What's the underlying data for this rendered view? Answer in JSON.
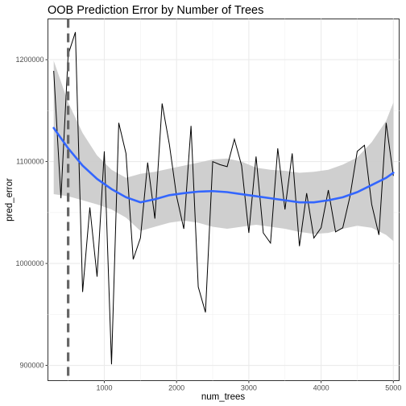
{
  "chart_data": {
    "type": "line",
    "title": "OOB Prediction Error by Number of Trees",
    "xlabel": "num_trees",
    "ylabel": "pred_error",
    "xlim": [
      220,
      5080
    ],
    "ylim": [
      885000,
      1240000
    ],
    "x_ticks": [
      1000,
      2000,
      3000,
      4000,
      5000
    ],
    "y_ticks": [
      900000,
      1000000,
      1100000,
      1200000
    ],
    "x_tick_labels": [
      "1000",
      "2000",
      "3000",
      "4000",
      "5000"
    ],
    "y_tick_labels": [
      "900000",
      "1000000",
      "1100000",
      "1200000"
    ],
    "grid": true,
    "legend": "none",
    "vline": {
      "x": 500,
      "style": "dashed",
      "color": "#666666"
    },
    "series": [
      {
        "kind": "line",
        "color": "#000000",
        "x": [
          300,
          400,
          500,
          600,
          700,
          800,
          900,
          1000,
          1100,
          1200,
          1300,
          1400,
          1500,
          1600,
          1700,
          1800,
          1900,
          2000,
          2100,
          2200,
          2300,
          2400,
          2500,
          2600,
          2700,
          2800,
          2900,
          3000,
          3100,
          3200,
          3300,
          3400,
          3500,
          3600,
          3700,
          3800,
          3900,
          4000,
          4100,
          4200,
          4300,
          4400,
          4500,
          4600,
          4700,
          4800,
          4900,
          5000
        ],
        "values": [
          1189000,
          1064000,
          1205000,
          1227000,
          972000,
          1055000,
          987000,
          1110000,
          901000,
          1138000,
          1108000,
          1004000,
          1025000,
          1099000,
          1044000,
          1157000,
          1117000,
          1066000,
          1034000,
          1135000,
          977000,
          952000,
          1100000,
          1097000,
          1095000,
          1122000,
          1096000,
          1030000,
          1105000,
          1030000,
          1020000,
          1113000,
          1053000,
          1108000,
          1017000,
          1069000,
          1025000,
          1035000,
          1072000,
          1031000,
          1035000,
          1066000,
          1110000,
          1116000,
          1058000,
          1028000,
          1138000,
          1086000
        ]
      },
      {
        "kind": "smooth",
        "color": "#3366ff",
        "x": [
          300,
          500,
          700,
          900,
          1100,
          1300,
          1500,
          1700,
          1900,
          2100,
          2300,
          2500,
          2700,
          2900,
          3100,
          3300,
          3500,
          3700,
          3900,
          4100,
          4300,
          4500,
          4700,
          4900,
          5000
        ],
        "values": [
          1133000,
          1113000,
          1096000,
          1083000,
          1073000,
          1065000,
          1060000,
          1063000,
          1067000,
          1069000,
          1070500,
          1071000,
          1070000,
          1068000,
          1066000,
          1064000,
          1062000,
          1060000,
          1060000,
          1062000,
          1065000,
          1070000,
          1077000,
          1084000,
          1089000
        ],
        "ci_lower": [
          1068000,
          1066000,
          1062000,
          1058000,
          1053000,
          1045000,
          1032000,
          1036000,
          1040000,
          1042000,
          1040000,
          1036000,
          1034000,
          1036000,
          1038000,
          1036000,
          1034000,
          1031000,
          1029000,
          1030000,
          1034000,
          1037000,
          1035000,
          1028000,
          1022000
        ],
        "ci_upper": [
          1199000,
          1158000,
          1128000,
          1106000,
          1092000,
          1084000,
          1088000,
          1090000,
          1093000,
          1096000,
          1099000,
          1102000,
          1103000,
          1100000,
          1094000,
          1092000,
          1091000,
          1089000,
          1090000,
          1092000,
          1097000,
          1104000,
          1119000,
          1140000,
          1158000
        ],
        "ci_color": "#cccccc"
      }
    ]
  }
}
